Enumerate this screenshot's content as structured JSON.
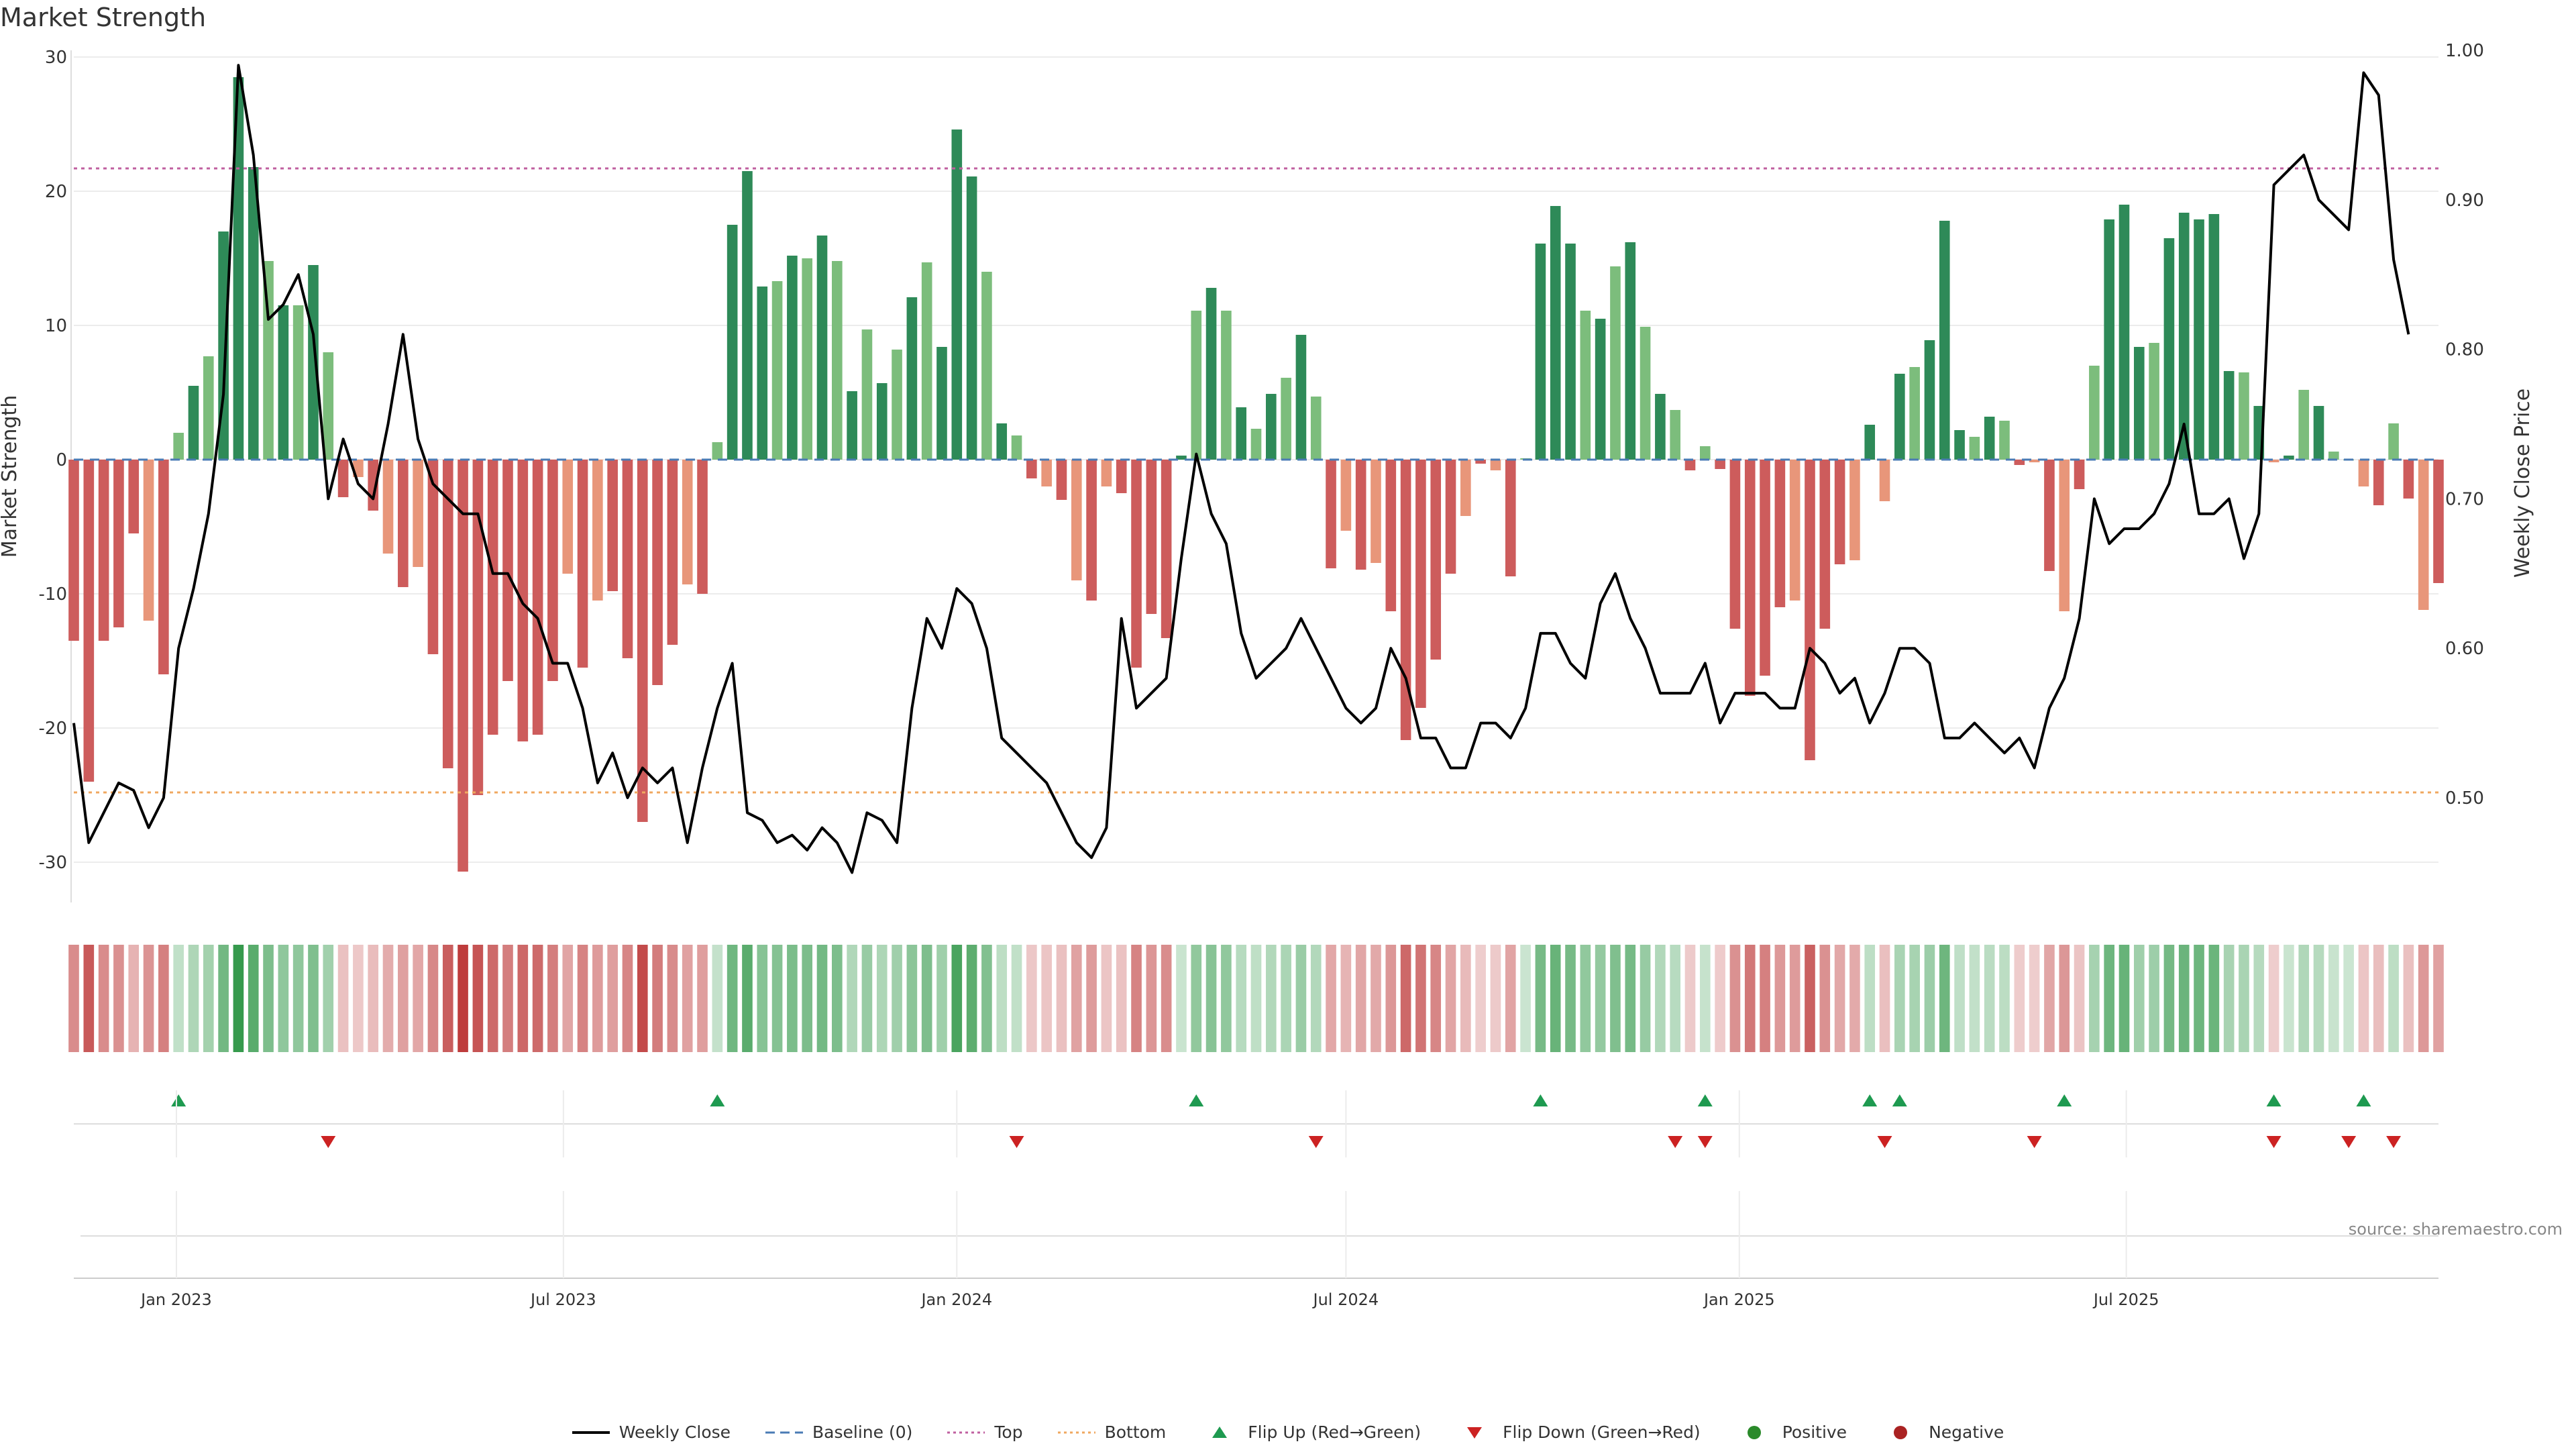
{
  "title": "Market Strength",
  "source": "source: sharemaestro.com",
  "legend": [
    {
      "label": "Weekly Close",
      "kind": "line",
      "color": "#000000"
    },
    {
      "label": "Baseline (0)",
      "kind": "dash",
      "color": "#4a7bb5"
    },
    {
      "label": "Top",
      "kind": "dot",
      "color": "#c060a0"
    },
    {
      "label": "Bottom",
      "kind": "dot",
      "color": "#f0a860"
    },
    {
      "label": "Flip Up (Red→Green)",
      "kind": "tri-up",
      "color": "#1e9a50"
    },
    {
      "label": "Flip Down (Green→Red)",
      "kind": "tri-down",
      "color": "#cc2222"
    },
    {
      "label": "Positive",
      "kind": "circle",
      "color": "#2a8a2a"
    },
    {
      "label": "Negative",
      "kind": "circle",
      "color": "#aa2222"
    }
  ],
  "chart_data": {
    "type": "bar",
    "ylabel": "Market Strength",
    "y2label": "Weekly Close Price",
    "ylim": [
      -33,
      30.5
    ],
    "y2lim": [
      0.43,
      1.0
    ],
    "yticks": [
      -30,
      -20,
      -10,
      0,
      10,
      20,
      30
    ],
    "y2ticks": [
      0.5,
      0.6,
      0.7,
      0.8,
      0.9,
      1.0
    ],
    "y2ticklabels": [
      "0.50",
      "0.60",
      "0.70",
      "0.80",
      "0.90",
      "1.00"
    ],
    "x": {
      "start": "2022-11-14",
      "end": "2025-11-24"
    },
    "xticks": [
      {
        "date": "2023-01-01",
        "label": "Jan 2023"
      },
      {
        "date": "2023-07-01",
        "label": "Jul 2023"
      },
      {
        "date": "2024-01-01",
        "label": "Jan 2024"
      },
      {
        "date": "2024-07-01",
        "label": "Jul 2024"
      },
      {
        "date": "2025-01-01",
        "label": "Jan 2025"
      },
      {
        "date": "2025-07-01",
        "label": "Jul 2025"
      }
    ],
    "top_line": 21.7,
    "bottom_line": -24.8,
    "strength": [
      -13.5,
      -24,
      -13.5,
      -12.5,
      -5.5,
      -12,
      -16,
      2,
      5.5,
      7.7,
      17,
      28.5,
      21.8,
      14.8,
      11.5,
      11.5,
      14.5,
      8,
      -2.8,
      -1.3,
      -3.8,
      -7,
      -9.5,
      -8,
      -14.5,
      -23,
      -30.7,
      -25,
      -20.5,
      -16.5,
      -21,
      -20.5,
      -16.5,
      -8.5,
      -15.5,
      -10.5,
      -9.8,
      -14.8,
      -27,
      -16.8,
      -13.8,
      -9.3,
      -10,
      1.3,
      17.5,
      21.5,
      12.9,
      13.3,
      15.2,
      15,
      16.7,
      14.8,
      5.1,
      9.7,
      5.7,
      8.2,
      12.1,
      14.7,
      8.4,
      24.6,
      21.1,
      14,
      2.7,
      1.8,
      -1.4,
      -2,
      -3,
      -9,
      -10.5,
      -2,
      -2.5,
      -15.5,
      -11.5,
      -13.3,
      0.3,
      11.1,
      12.8,
      11.1,
      3.9,
      2.3,
      4.9,
      6.1,
      9.3,
      4.7,
      -8.1,
      -5.3,
      -8.2,
      -7.7,
      -11.3,
      -20.9,
      -18.5,
      -14.9,
      -8.5,
      -4.2,
      -0.3,
      -0.8,
      -8.7,
      0.1,
      16.1,
      18.9,
      16.1,
      11.1,
      10.5,
      14.4,
      16.2,
      9.9,
      4.9,
      3.7,
      -0.8,
      1,
      -0.7,
      -12.6,
      -17.6,
      -16.1,
      -11,
      -10.5,
      -22.4,
      -12.6,
      -7.8,
      -7.5,
      2.6,
      -3.1,
      6.4,
      6.9,
      8.9,
      17.8,
      2.2,
      1.7,
      3.2,
      2.9,
      -0.4,
      -0.2,
      -8.3,
      -11.3,
      -2.2,
      7,
      17.9,
      19,
      8.4,
      8.7,
      16.5,
      18.4,
      17.9,
      18.3,
      6.6,
      6.5,
      4,
      -0.2,
      0.3,
      5.2,
      4,
      0.6,
      0,
      -2,
      -3.4,
      2.7,
      -2.9,
      -11.2,
      -9.2
    ],
    "price": [
      0.55,
      0.47,
      0.49,
      0.51,
      0.505,
      0.48,
      0.5,
      0.6,
      0.64,
      0.69,
      0.77,
      0.99,
      0.93,
      0.82,
      0.83,
      0.85,
      0.81,
      0.7,
      0.74,
      0.71,
      0.7,
      0.75,
      0.81,
      0.74,
      0.71,
      0.7,
      0.69,
      0.69,
      0.65,
      0.65,
      0.63,
      0.62,
      0.59,
      0.59,
      0.56,
      0.51,
      0.53,
      0.5,
      0.52,
      0.51,
      0.52,
      0.47,
      0.52,
      0.56,
      0.59,
      0.49,
      0.485,
      0.47,
      0.475,
      0.465,
      0.48,
      0.47,
      0.45,
      0.49,
      0.485,
      0.47,
      0.56,
      0.62,
      0.6,
      0.64,
      0.63,
      0.6,
      0.54,
      0.53,
      0.52,
      0.51,
      0.49,
      0.47,
      0.46,
      0.48,
      0.62,
      0.56,
      0.57,
      0.58,
      0.66,
      0.73,
      0.69,
      0.67,
      0.61,
      0.58,
      0.59,
      0.6,
      0.62,
      0.6,
      0.58,
      0.56,
      0.55,
      0.56,
      0.6,
      0.58,
      0.54,
      0.54,
      0.52,
      0.52,
      0.55,
      0.55,
      0.54,
      0.56,
      0.61,
      0.61,
      0.59,
      0.58,
      0.63,
      0.65,
      0.62,
      0.6,
      0.57,
      0.57,
      0.57,
      0.59,
      0.55,
      0.57,
      0.57,
      0.57,
      0.56,
      0.56,
      0.6,
      0.59,
      0.57,
      0.58,
      0.55,
      0.57,
      0.6,
      0.6,
      0.59,
      0.54,
      0.54,
      0.55,
      0.54,
      0.53,
      0.54,
      0.52,
      0.56,
      0.58,
      0.62,
      0.7,
      0.67,
      0.68,
      0.68,
      0.69,
      0.71,
      0.75,
      0.69,
      0.69,
      0.7,
      0.66,
      0.69,
      0.91,
      0.92,
      0.93,
      0.9,
      0.89,
      0.88,
      0.985,
      0.97,
      0.86,
      0.81
    ],
    "flip_up_index": [
      7,
      43,
      75,
      98,
      109,
      120,
      122,
      133,
      147,
      153
    ],
    "flip_down_index": [
      17,
      63,
      83,
      107,
      109,
      121,
      131,
      147,
      152,
      155
    ]
  }
}
